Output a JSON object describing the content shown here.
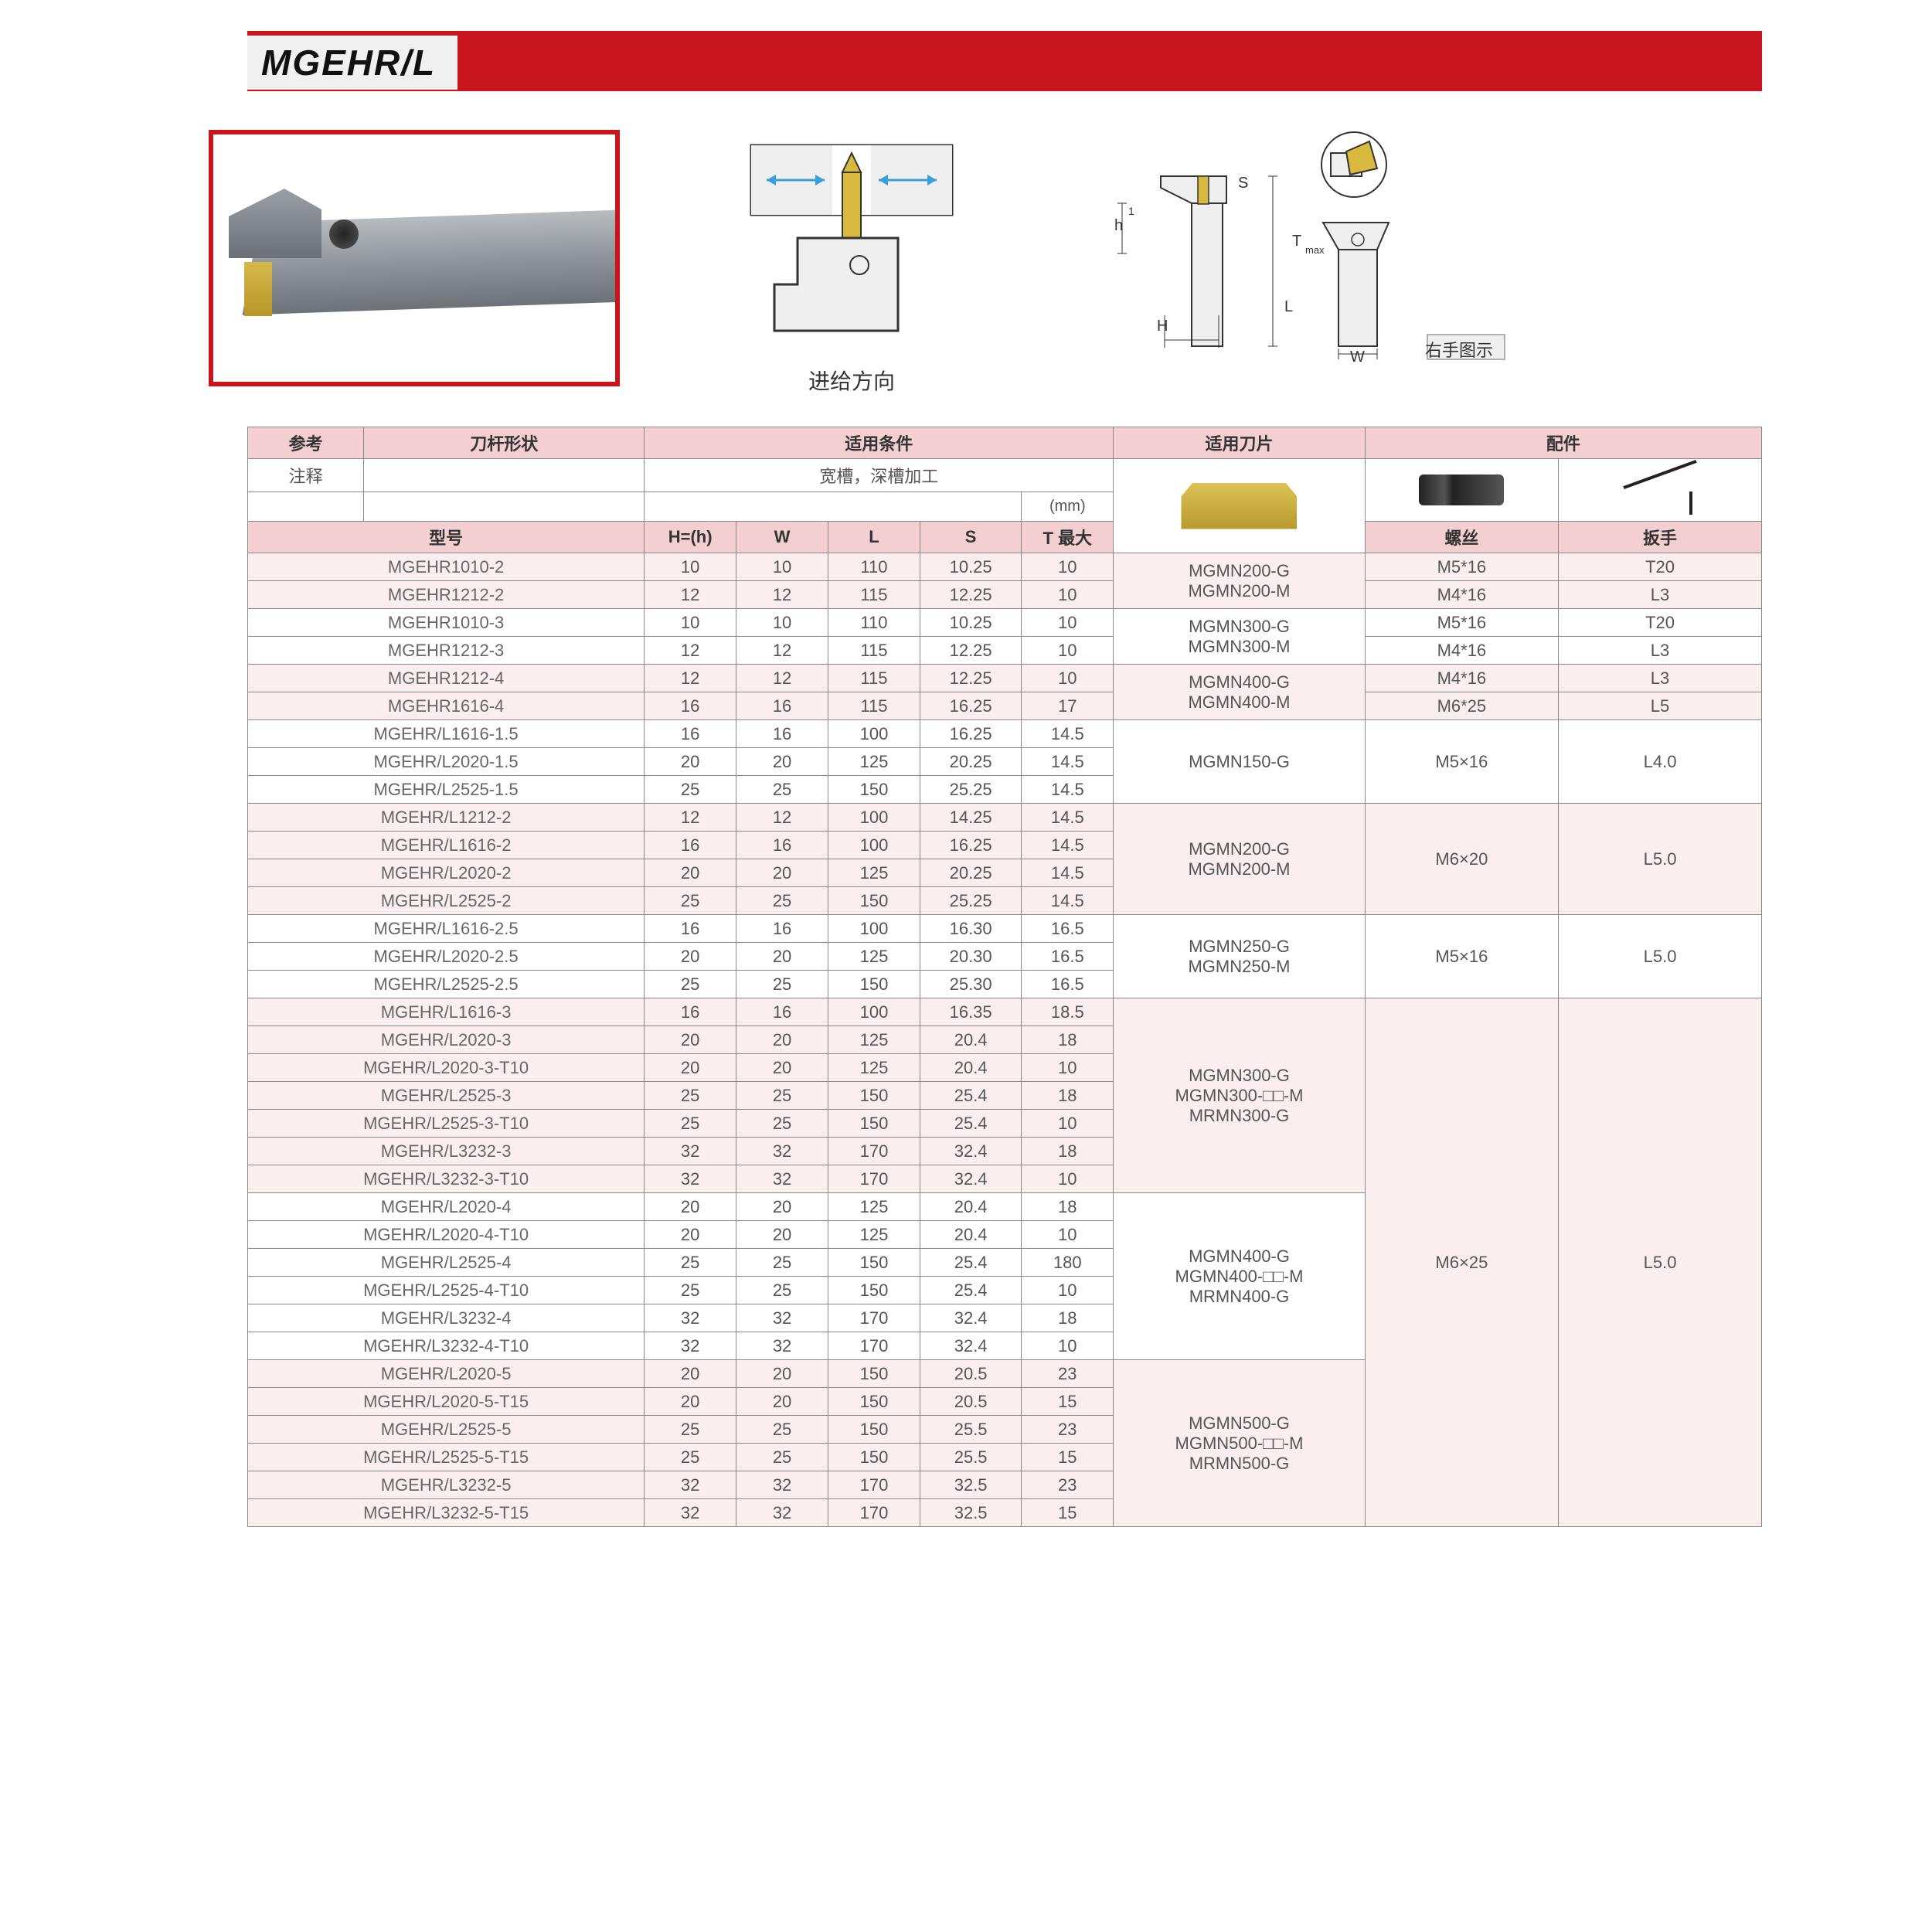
{
  "title": "MGEHR/L",
  "diagram_feed_label": "进给方向",
  "diagram_right_label": "右手图示",
  "headers": {
    "ref": "参考",
    "shape": "刀杆形状",
    "cond": "适用条件",
    "insert": "适用刀片",
    "acc": "配件",
    "note": "注释",
    "cond_text": "宽槽，深槽加工",
    "mm": "(mm)",
    "model": "型号",
    "H": "H=(h)",
    "W": "W",
    "L": "L",
    "S": "S",
    "T": "T 最大",
    "screw": "螺丝",
    "wrench": "扳手"
  },
  "groups": [
    {
      "rows": [
        {
          "m": "MGEHR1010-2",
          "h": "10",
          "w": "10",
          "l": "110",
          "s": "10.25",
          "t": "10",
          "scr": "M5*16",
          "wr": "T20"
        },
        {
          "m": "MGEHR1212-2",
          "h": "12",
          "w": "12",
          "l": "115",
          "s": "12.25",
          "t": "10",
          "scr": "M4*16",
          "wr": "L3"
        }
      ],
      "insert": [
        "MGMN200-G",
        "MGMN200-M"
      ]
    },
    {
      "rows": [
        {
          "m": "MGEHR1010-3",
          "h": "10",
          "w": "10",
          "l": "110",
          "s": "10.25",
          "t": "10",
          "scr": "M5*16",
          "wr": "T20"
        },
        {
          "m": "MGEHR1212-3",
          "h": "12",
          "w": "12",
          "l": "115",
          "s": "12.25",
          "t": "10",
          "scr": "M4*16",
          "wr": "L3"
        }
      ],
      "insert": [
        "MGMN300-G",
        "MGMN300-M"
      ]
    },
    {
      "rows": [
        {
          "m": "MGEHR1212-4",
          "h": "12",
          "w": "12",
          "l": "115",
          "s": "12.25",
          "t": "10",
          "scr": "M4*16",
          "wr": "L3"
        },
        {
          "m": "MGEHR1616-4",
          "h": "16",
          "w": "16",
          "l": "115",
          "s": "16.25",
          "t": "17",
          "scr": "M6*25",
          "wr": "L5"
        }
      ],
      "insert": [
        "MGMN400-G",
        "MGMN400-M"
      ]
    },
    {
      "rows": [
        {
          "m": "MGEHR/L1616-1.5",
          "h": "16",
          "w": "16",
          "l": "100",
          "s": "16.25",
          "t": "14.5"
        },
        {
          "m": "MGEHR/L2020-1.5",
          "h": "20",
          "w": "20",
          "l": "125",
          "s": "20.25",
          "t": "14.5"
        },
        {
          "m": "MGEHR/L2525-1.5",
          "h": "25",
          "w": "25",
          "l": "150",
          "s": "25.25",
          "t": "14.5"
        }
      ],
      "insert": [
        "MGMN150-G"
      ],
      "scr": "M5×16",
      "wr": "L4.0"
    },
    {
      "rows": [
        {
          "m": "MGEHR/L1212-2",
          "h": "12",
          "w": "12",
          "l": "100",
          "s": "14.25",
          "t": "14.5"
        },
        {
          "m": "MGEHR/L1616-2",
          "h": "16",
          "w": "16",
          "l": "100",
          "s": "16.25",
          "t": "14.5"
        },
        {
          "m": "MGEHR/L2020-2",
          "h": "20",
          "w": "20",
          "l": "125",
          "s": "20.25",
          "t": "14.5"
        },
        {
          "m": "MGEHR/L2525-2",
          "h": "25",
          "w": "25",
          "l": "150",
          "s": "25.25",
          "t": "14.5"
        }
      ],
      "insert": [
        "MGMN200-G",
        "MGMN200-M"
      ],
      "scr": "M6×20",
      "wr": "L5.0"
    },
    {
      "rows": [
        {
          "m": "MGEHR/L1616-2.5",
          "h": "16",
          "w": "16",
          "l": "100",
          "s": "16.30",
          "t": "16.5"
        },
        {
          "m": "MGEHR/L2020-2.5",
          "h": "20",
          "w": "20",
          "l": "125",
          "s": "20.30",
          "t": "16.5"
        },
        {
          "m": "MGEHR/L2525-2.5",
          "h": "25",
          "w": "25",
          "l": "150",
          "s": "25.30",
          "t": "16.5"
        }
      ],
      "insert": [
        "MGMN250-G",
        "MGMN250-M"
      ],
      "scr": "M5×16",
      "wr": "L5.0"
    },
    {
      "rows": [
        {
          "m": "MGEHR/L1616-3",
          "h": "16",
          "w": "16",
          "l": "100",
          "s": "16.35",
          "t": "18.5"
        },
        {
          "m": "MGEHR/L2020-3",
          "h": "20",
          "w": "20",
          "l": "125",
          "s": "20.4",
          "t": "18"
        },
        {
          "m": "MGEHR/L2020-3-T10",
          "h": "20",
          "w": "20",
          "l": "125",
          "s": "20.4",
          "t": "10"
        },
        {
          "m": "MGEHR/L2525-3",
          "h": "25",
          "w": "25",
          "l": "150",
          "s": "25.4",
          "t": "18"
        },
        {
          "m": "MGEHR/L2525-3-T10",
          "h": "25",
          "w": "25",
          "l": "150",
          "s": "25.4",
          "t": "10"
        },
        {
          "m": "MGEHR/L3232-3",
          "h": "32",
          "w": "32",
          "l": "170",
          "s": "32.4",
          "t": "18"
        },
        {
          "m": "MGEHR/L3232-3-T10",
          "h": "32",
          "w": "32",
          "l": "170",
          "s": "32.4",
          "t": "10"
        }
      ],
      "insert": [
        "MGMN300-G",
        "MGMN300-□□-M",
        "MRMN300-G"
      ],
      "big_scr": "M6×25",
      "big_wr": "L5.0",
      "big_span": 19
    },
    {
      "rows": [
        {
          "m": "MGEHR/L2020-4",
          "h": "20",
          "w": "20",
          "l": "125",
          "s": "20.4",
          "t": "18"
        },
        {
          "m": "MGEHR/L2020-4-T10",
          "h": "20",
          "w": "20",
          "l": "125",
          "s": "20.4",
          "t": "10"
        },
        {
          "m": "MGEHR/L2525-4",
          "h": "25",
          "w": "25",
          "l": "150",
          "s": "25.4",
          "t": "180"
        },
        {
          "m": "MGEHR/L2525-4-T10",
          "h": "25",
          "w": "25",
          "l": "150",
          "s": "25.4",
          "t": "10"
        },
        {
          "m": "MGEHR/L3232-4",
          "h": "32",
          "w": "32",
          "l": "170",
          "s": "32.4",
          "t": "18"
        },
        {
          "m": "MGEHR/L3232-4-T10",
          "h": "32",
          "w": "32",
          "l": "170",
          "s": "32.4",
          "t": "10"
        }
      ],
      "insert": [
        "MGMN400-G",
        "MGMN400-□□-M",
        "MRMN400-G"
      ]
    },
    {
      "rows": [
        {
          "m": "MGEHR/L2020-5",
          "h": "20",
          "w": "20",
          "l": "150",
          "s": "20.5",
          "t": "23"
        },
        {
          "m": "MGEHR/L2020-5-T15",
          "h": "20",
          "w": "20",
          "l": "150",
          "s": "20.5",
          "t": "15"
        },
        {
          "m": "MGEHR/L2525-5",
          "h": "25",
          "w": "25",
          "l": "150",
          "s": "25.5",
          "t": "23"
        },
        {
          "m": "MGEHR/L2525-5-T15",
          "h": "25",
          "w": "25",
          "l": "150",
          "s": "25.5",
          "t": "15"
        },
        {
          "m": "MGEHR/L3232-5",
          "h": "32",
          "w": "32",
          "l": "170",
          "s": "32.5",
          "t": "23"
        },
        {
          "m": "MGEHR/L3232-5-T15",
          "h": "32",
          "w": "32",
          "l": "170",
          "s": "32.5",
          "t": "15"
        }
      ],
      "insert": [
        "MGMN500-G",
        "MGMN500-□□-M",
        "MRMN500-G"
      ]
    }
  ]
}
